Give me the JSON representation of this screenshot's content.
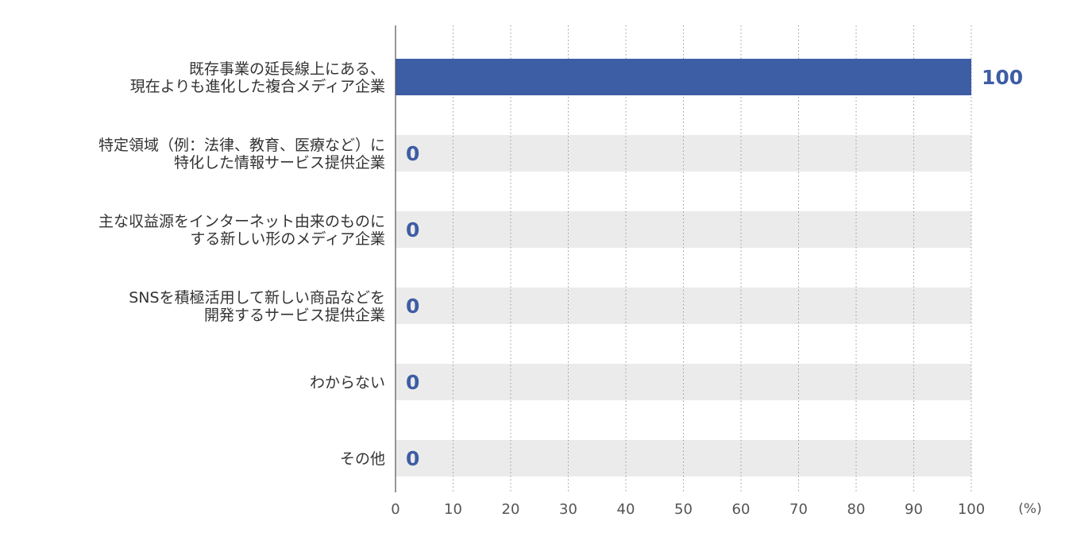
{
  "chart_data": {
    "type": "bar",
    "orientation": "horizontal",
    "categories": [
      [
        "既存事業の延長線上にある、",
        "現在よりも進化した複合メディア企業"
      ],
      [
        "特定領域（例：法律、教育、医療など）に",
        "特化した情報サービス提供企業"
      ],
      [
        "主な収益源をインターネット由来のものに",
        "する新しい形のメディア企業"
      ],
      [
        "SNSを積極活用して新しい商品などを",
        "開発するサービス提供企業"
      ],
      [
        "わからない"
      ],
      [
        "その他"
      ]
    ],
    "values": [
      100,
      0,
      0,
      0,
      0,
      0
    ],
    "value_labels": [
      "100",
      "0",
      "0",
      "0",
      "0",
      "0"
    ],
    "xlim": [
      0,
      100
    ],
    "xticks": [
      "0",
      "10",
      "20",
      "30",
      "40",
      "50",
      "60",
      "70",
      "80",
      "90",
      "100"
    ],
    "unit_label": "(%)",
    "grid": "vertical dotted",
    "colors": {
      "bar": "#3d5da4",
      "track": "#ebebeb",
      "value": "#3d5da4",
      "grid": "#9a9a9a",
      "axis": "#555555"
    }
  }
}
